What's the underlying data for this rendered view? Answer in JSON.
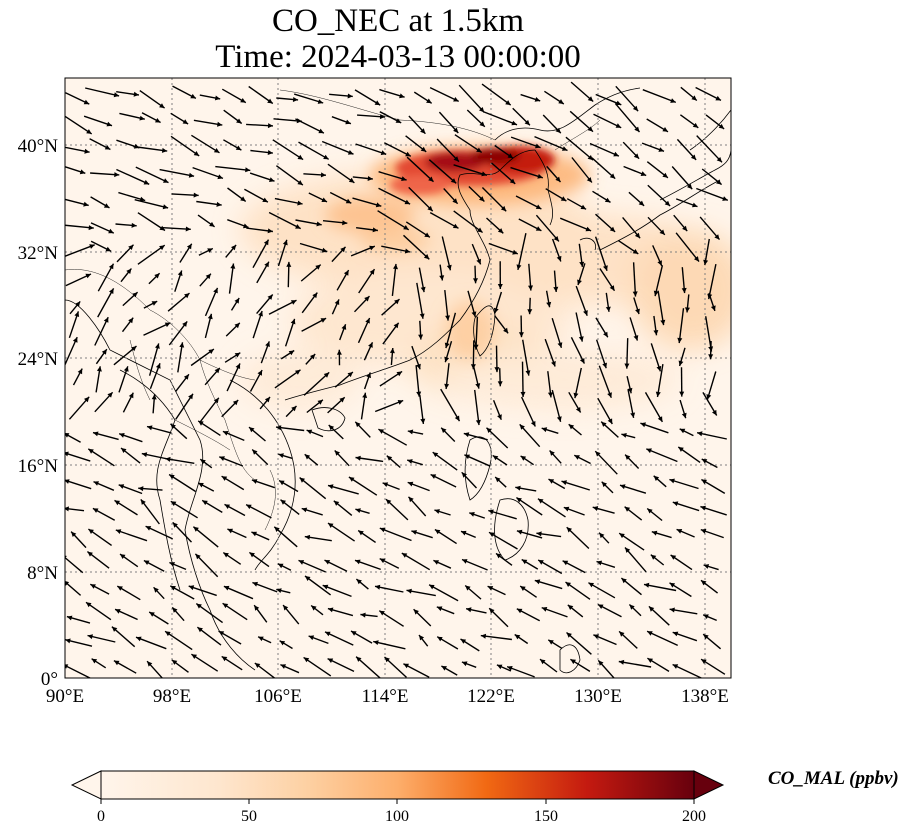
{
  "title": "CO_NEC at 1.5km",
  "subtitle": "Time: 2024-03-13 00:00:00",
  "map": {
    "projection": "PlateCarree",
    "lon_range": [
      90,
      140
    ],
    "lat_range": [
      0,
      45
    ],
    "gridlines": "dotted gray",
    "lat_ticks": [
      "40°N",
      "32°N",
      "24°N",
      "16°N",
      "8°N",
      "0°"
    ],
    "lon_ticks": [
      "90°E",
      "98°E",
      "106°E",
      "114°E",
      "122°E",
      "130°E",
      "138°E"
    ],
    "background_color": "#fff5eb",
    "coastline_color": "#000000",
    "wind_arrow_color": "#000000"
  },
  "colorbar": {
    "label": "CO_MAL (ppbv)",
    "ticks": [
      "0",
      "50",
      "100",
      "150",
      "200"
    ],
    "range": [
      0,
      200
    ],
    "extend": "both",
    "colormap": "OrRd",
    "colors": [
      "#fff5eb",
      "#fdd0a2",
      "#fdae6b",
      "#f16913",
      "#d94801",
      "#a50f15",
      "#67000d"
    ]
  }
}
